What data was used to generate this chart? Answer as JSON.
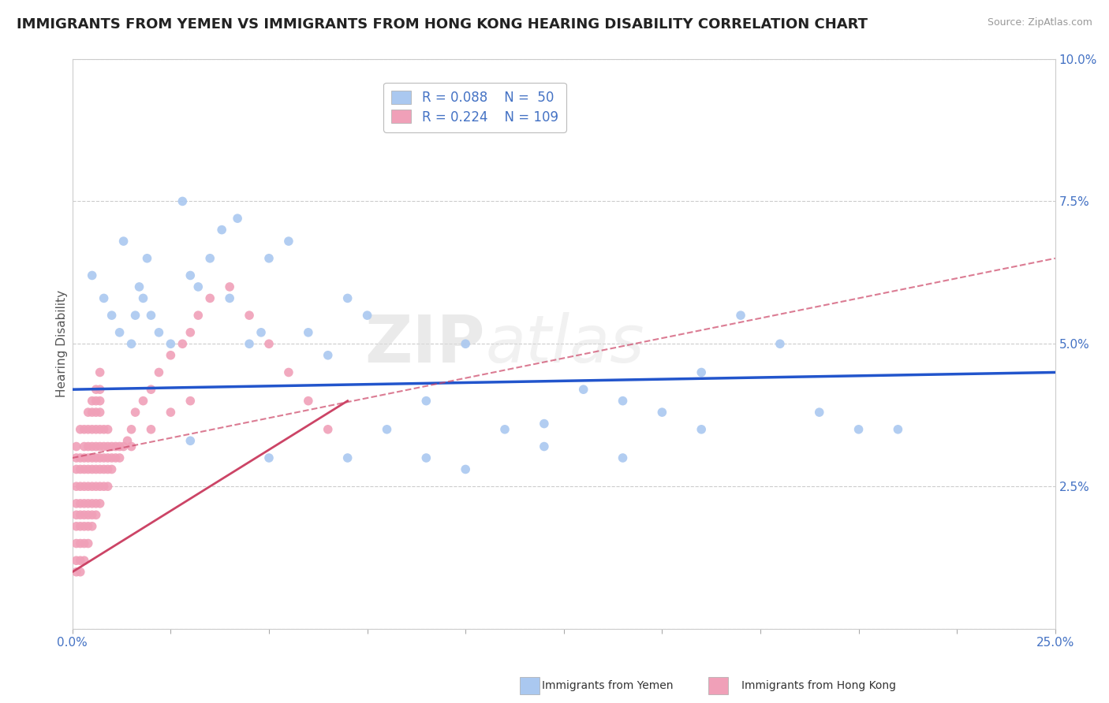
{
  "title": "IMMIGRANTS FROM YEMEN VS IMMIGRANTS FROM HONG KONG HEARING DISABILITY CORRELATION CHART",
  "source": "Source: ZipAtlas.com",
  "ylabel": "Hearing Disability",
  "xlim": [
    0.0,
    0.25
  ],
  "ylim": [
    0.0,
    0.1
  ],
  "xticks": [
    0.0,
    0.025,
    0.05,
    0.075,
    0.1,
    0.125,
    0.15,
    0.175,
    0.2,
    0.225,
    0.25
  ],
  "yticks": [
    0.0,
    0.025,
    0.05,
    0.075,
    0.1
  ],
  "yemen_color": "#aac8f0",
  "hk_color": "#f0a0b8",
  "trendline_yemen_color": "#2255cc",
  "trendline_hk_color": "#cc4466",
  "background_color": "#ffffff",
  "grid_color": "#cccccc",
  "watermark_zip": "ZIP",
  "watermark_atlas": "atlas",
  "title_fontsize": 13,
  "axis_label_fontsize": 11,
  "tick_fontsize": 11,
  "legend_fontsize": 12,
  "yemen_scatter_x": [
    0.005,
    0.008,
    0.01,
    0.012,
    0.013,
    0.015,
    0.016,
    0.017,
    0.018,
    0.019,
    0.02,
    0.022,
    0.025,
    0.028,
    0.03,
    0.032,
    0.035,
    0.038,
    0.04,
    0.042,
    0.045,
    0.048,
    0.05,
    0.055,
    0.06,
    0.065,
    0.07,
    0.075,
    0.08,
    0.09,
    0.1,
    0.11,
    0.12,
    0.13,
    0.14,
    0.15,
    0.16,
    0.17,
    0.18,
    0.19,
    0.2,
    0.21,
    0.1,
    0.12,
    0.14,
    0.16,
    0.09,
    0.07,
    0.05,
    0.03
  ],
  "yemen_scatter_y": [
    0.062,
    0.058,
    0.055,
    0.052,
    0.068,
    0.05,
    0.055,
    0.06,
    0.058,
    0.065,
    0.055,
    0.052,
    0.05,
    0.075,
    0.062,
    0.06,
    0.065,
    0.07,
    0.058,
    0.072,
    0.05,
    0.052,
    0.065,
    0.068,
    0.052,
    0.048,
    0.058,
    0.055,
    0.035,
    0.04,
    0.05,
    0.035,
    0.036,
    0.042,
    0.04,
    0.038,
    0.045,
    0.055,
    0.05,
    0.038,
    0.035,
    0.035,
    0.028,
    0.032,
    0.03,
    0.035,
    0.03,
    0.03,
    0.03,
    0.033
  ],
  "hk_scatter_x": [
    0.001,
    0.001,
    0.001,
    0.001,
    0.001,
    0.001,
    0.001,
    0.001,
    0.001,
    0.001,
    0.002,
    0.002,
    0.002,
    0.002,
    0.002,
    0.002,
    0.002,
    0.002,
    0.002,
    0.002,
    0.003,
    0.003,
    0.003,
    0.003,
    0.003,
    0.003,
    0.003,
    0.003,
    0.003,
    0.003,
    0.004,
    0.004,
    0.004,
    0.004,
    0.004,
    0.004,
    0.004,
    0.004,
    0.004,
    0.004,
    0.005,
    0.005,
    0.005,
    0.005,
    0.005,
    0.005,
    0.005,
    0.005,
    0.005,
    0.005,
    0.006,
    0.006,
    0.006,
    0.006,
    0.006,
    0.006,
    0.006,
    0.006,
    0.006,
    0.006,
    0.007,
    0.007,
    0.007,
    0.007,
    0.007,
    0.007,
    0.007,
    0.007,
    0.007,
    0.007,
    0.008,
    0.008,
    0.008,
    0.008,
    0.008,
    0.009,
    0.009,
    0.009,
    0.009,
    0.009,
    0.01,
    0.01,
    0.01,
    0.011,
    0.011,
    0.012,
    0.012,
    0.013,
    0.014,
    0.015,
    0.016,
    0.018,
    0.02,
    0.022,
    0.025,
    0.028,
    0.03,
    0.032,
    0.035,
    0.04,
    0.045,
    0.05,
    0.055,
    0.06,
    0.065,
    0.03,
    0.025,
    0.02,
    0.015
  ],
  "hk_scatter_y": [
    0.01,
    0.012,
    0.015,
    0.018,
    0.02,
    0.022,
    0.025,
    0.028,
    0.03,
    0.032,
    0.01,
    0.012,
    0.015,
    0.018,
    0.02,
    0.022,
    0.025,
    0.028,
    0.03,
    0.035,
    0.012,
    0.015,
    0.018,
    0.02,
    0.022,
    0.025,
    0.028,
    0.03,
    0.032,
    0.035,
    0.015,
    0.018,
    0.02,
    0.022,
    0.025,
    0.028,
    0.03,
    0.032,
    0.035,
    0.038,
    0.018,
    0.02,
    0.022,
    0.025,
    0.028,
    0.03,
    0.032,
    0.035,
    0.038,
    0.04,
    0.02,
    0.022,
    0.025,
    0.028,
    0.03,
    0.032,
    0.035,
    0.038,
    0.04,
    0.042,
    0.022,
    0.025,
    0.028,
    0.03,
    0.032,
    0.035,
    0.038,
    0.04,
    0.042,
    0.045,
    0.025,
    0.028,
    0.03,
    0.032,
    0.035,
    0.025,
    0.028,
    0.03,
    0.032,
    0.035,
    0.028,
    0.03,
    0.032,
    0.03,
    0.032,
    0.03,
    0.032,
    0.032,
    0.033,
    0.035,
    0.038,
    0.04,
    0.042,
    0.045,
    0.048,
    0.05,
    0.052,
    0.055,
    0.058,
    0.06,
    0.055,
    0.05,
    0.045,
    0.04,
    0.035,
    0.04,
    0.038,
    0.035,
    0.032
  ]
}
